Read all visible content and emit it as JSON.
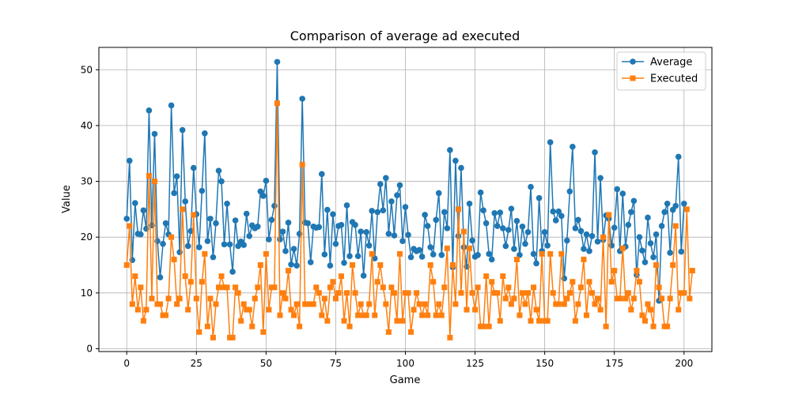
{
  "chart_data": {
    "type": "line",
    "title": "Comparison of average ad executed",
    "xlabel": "Game",
    "ylabel": "Value",
    "xlim": [
      -10,
      210
    ],
    "ylim": [
      -0.5,
      54
    ],
    "xticks": [
      0,
      25,
      50,
      75,
      100,
      125,
      150,
      175,
      200
    ],
    "yticks": [
      0,
      10,
      20,
      30,
      40,
      50
    ],
    "grid": true,
    "legend_position": "top-right",
    "series": [
      {
        "name": "Average",
        "color": "#1f77b4",
        "marker": "circle",
        "values": [
          23.3,
          33.7,
          15.9,
          26.1,
          20.6,
          20.5,
          24.8,
          21.5,
          42.7,
          22.1,
          38.5,
          19.3,
          12.8,
          18.8,
          22.5,
          20.5,
          43.6,
          27.9,
          30.9,
          17.3,
          39.2,
          26.4,
          18.4,
          21.1,
          32.4,
          24.1,
          18.2,
          28.3,
          38.6,
          19.3,
          23.3,
          16.4,
          22.5,
          31.9,
          30.0,
          18.7,
          26.0,
          18.7,
          13.8,
          23.0,
          18.4,
          19.2,
          18.6,
          24.2,
          20.2,
          22.1,
          21.6,
          21.9,
          28.2,
          27.4,
          30.1,
          19.6,
          23.1,
          25.6,
          51.4,
          19.6,
          21.0,
          17.5,
          22.6,
          15.1,
          17.9,
          14.9,
          20.6,
          44.8,
          22.6,
          22.5,
          15.5,
          21.9,
          21.7,
          21.8,
          31.3,
          16.9,
          24.9,
          14.9,
          24.1,
          18.8,
          22.0,
          22.2,
          15.4,
          25.7,
          16.6,
          22.7,
          22.2,
          16.6,
          21.0,
          13.1,
          20.9,
          18.5,
          24.7,
          16.2,
          24.5,
          29.5,
          24.8,
          30.6,
          20.6,
          26.4,
          20.3,
          27.5,
          29.3,
          19.3,
          25.4,
          20.4,
          16.4,
          17.9,
          17.5,
          17.7,
          16.5,
          24.0,
          22.0,
          18.2,
          16.9,
          23.1,
          27.9,
          16.8,
          24.5,
          21.6,
          35.6,
          14.6,
          33.7,
          20.2,
          32.4,
          18.2,
          14.7,
          26.0,
          19.4,
          16.5,
          16.8,
          28.0,
          24.8,
          22.5,
          17.0,
          16.0,
          24.3,
          22.0,
          24.4,
          21.6,
          18.4,
          21.3,
          25.1,
          17.9,
          22.9,
          16.8,
          21.9,
          18.8,
          20.9,
          29.0,
          17.0,
          15.3,
          27.0,
          17.5,
          20.9,
          18.5,
          37.0,
          24.6,
          23.0,
          24.6,
          23.8,
          12.6,
          19.4,
          28.2,
          36.2,
          21.6,
          23.1,
          21.1,
          17.9,
          20.5,
          17.5,
          20.2,
          35.2,
          19.2,
          30.6,
          19.5,
          23.9,
          23.3,
          18.5,
          21.7,
          28.6,
          17.5,
          27.8,
          18.3,
          22.2,
          24.5,
          26.5,
          13.2,
          20.0,
          17.6,
          15.5,
          23.5,
          18.9,
          16.4,
          20.5,
          8.6,
          22.0,
          24.5,
          26.0,
          17.2,
          24.9,
          25.6,
          34.4,
          17.4,
          26.0
        ]
      },
      {
        "name": "Executed",
        "color": "#ff7f0e",
        "marker": "square",
        "values": [
          15,
          22,
          8,
          13,
          7,
          11,
          5,
          7,
          31,
          9,
          30,
          8,
          8,
          6,
          6,
          9,
          20,
          16,
          8,
          9,
          25,
          13,
          7,
          12,
          24,
          9,
          3,
          12,
          17,
          4,
          9,
          2,
          8,
          11,
          13,
          11,
          11,
          2,
          2,
          11,
          10,
          5,
          8,
          7,
          7,
          4,
          9,
          11,
          15,
          3,
          17,
          7,
          11,
          11,
          44,
          6,
          10,
          9,
          14,
          7,
          6,
          8,
          4,
          33,
          8,
          8,
          8,
          8,
          11,
          10,
          6,
          9,
          5,
          11,
          12,
          9,
          10,
          13,
          5,
          10,
          4,
          15,
          10,
          6,
          8,
          6,
          6,
          8,
          17,
          6,
          12,
          15,
          11,
          8,
          3,
          11,
          10,
          5,
          17,
          5,
          10,
          10,
          3,
          7,
          10,
          8,
          6,
          8,
          6,
          15,
          12,
          6,
          8,
          6,
          11,
          18,
          2,
          15,
          8,
          25,
          10,
          21,
          7,
          18,
          10,
          7,
          11,
          4,
          4,
          13,
          4,
          12,
          10,
          10,
          5,
          13,
          9,
          11,
          8,
          9,
          16,
          6,
          10,
          8,
          10,
          5,
          11,
          7,
          5,
          17,
          5,
          5,
          17,
          10,
          8,
          8,
          17,
          8,
          9,
          10,
          12,
          5,
          8,
          11,
          16,
          6,
          12,
          10,
          8,
          9,
          7,
          20,
          4,
          24,
          12,
          14,
          9,
          9,
          18,
          9,
          10,
          7,
          9,
          14,
          12,
          6,
          5,
          8,
          7,
          4,
          15,
          11,
          9,
          4,
          4,
          9,
          15,
          22,
          7,
          10,
          10,
          25,
          9,
          14
        ]
      }
    ]
  }
}
